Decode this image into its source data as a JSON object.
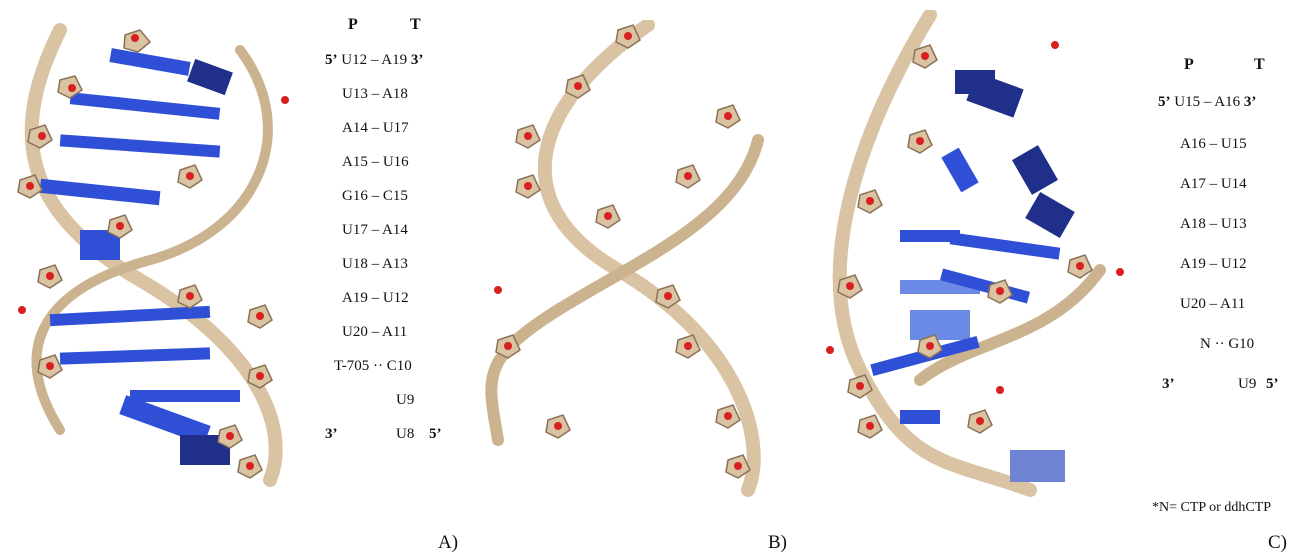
{
  "panels": [
    {
      "label": "A)",
      "headers": {
        "p": "P",
        "t": "T"
      },
      "rows": [
        {
          "p5": "5’",
          "pair": "U12 – A19",
          "t3": "3’"
        },
        {
          "pair": "U13 – A18"
        },
        {
          "pair": "A14 – U17"
        },
        {
          "pair": "A15 – U16"
        },
        {
          "pair": "G16 – C15"
        },
        {
          "pair": "U17 – A14"
        },
        {
          "pair": "U18 – A13"
        },
        {
          "pair": "A19 – U12"
        },
        {
          "pair": "U20 – A11"
        },
        {
          "pair": "T-705 ·· C10"
        },
        {
          "pair": "U9"
        },
        {
          "p3": "3’",
          "pair": "U8",
          "t5": "5’"
        }
      ]
    },
    {
      "label": "B)"
    },
    {
      "label": "C)",
      "headers": {
        "p": "P",
        "t": "T"
      },
      "rows": [
        {
          "p5": "5’",
          "pair": "U15 – A16",
          "t3": "3’"
        },
        {
          "pair": "A16 – U15"
        },
        {
          "pair": "A17 – U14"
        },
        {
          "pair": "A18 – U13"
        },
        {
          "pair": "A19 – U12"
        },
        {
          "pair": "U20 – A11"
        },
        {
          "pair": "N ·· G10"
        },
        {
          "p3": "3’",
          "pair": "U9",
          "t5": "5’"
        }
      ],
      "note": "*N= CTP or ddhCTP"
    }
  ],
  "colors": {
    "backbone": "#d9c3a3",
    "base": "#2f4fd6",
    "base_dark": "#1f2f8a",
    "oxygen": "#d92020"
  }
}
